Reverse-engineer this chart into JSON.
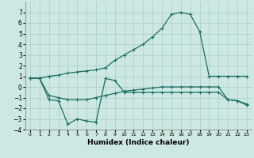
{
  "xlabel": "Humidex (Indice chaleur)",
  "background_color": "#cde8e2",
  "grid_color": "#aed0ca",
  "line_color": "#1a6e64",
  "xlim": [
    -0.5,
    23.5
  ],
  "ylim": [
    -4,
    8
  ],
  "yticks": [
    -4,
    -3,
    -2,
    -1,
    0,
    1,
    2,
    3,
    4,
    5,
    6,
    7
  ],
  "xticks": [
    0,
    1,
    2,
    3,
    4,
    5,
    6,
    7,
    8,
    9,
    10,
    11,
    12,
    13,
    14,
    15,
    16,
    17,
    18,
    19,
    20,
    21,
    22,
    23
  ],
  "series": [
    {
      "x": [
        0,
        1,
        2,
        3,
        4,
        5,
        6,
        7,
        8,
        9,
        10,
        11,
        12,
        13,
        14,
        15,
        16,
        17,
        18,
        19,
        20,
        21,
        22,
        23
      ],
      "y": [
        0.8,
        0.8,
        1.0,
        1.1,
        1.3,
        1.4,
        1.5,
        1.6,
        1.8,
        2.5,
        3.0,
        3.5,
        4.0,
        4.7,
        5.5,
        6.8,
        7.0,
        6.8,
        5.2,
        1.0,
        1.0,
        1.0,
        1.0,
        1.0
      ]
    },
    {
      "x": [
        0,
        1,
        2,
        3,
        4,
        5,
        6,
        7,
        8,
        9,
        10,
        11,
        12,
        13,
        14,
        15,
        16,
        17,
        18,
        19,
        20,
        21,
        22,
        23
      ],
      "y": [
        0.8,
        0.8,
        -0.8,
        -1.0,
        -1.2,
        -1.2,
        -1.2,
        -1.0,
        -0.8,
        -0.6,
        -0.4,
        -0.3,
        -0.2,
        -0.1,
        0.0,
        0.0,
        0.0,
        0.0,
        0.0,
        0.0,
        0.0,
        -1.2,
        -1.3,
        -1.6
      ]
    },
    {
      "x": [
        0,
        1,
        2,
        3,
        4,
        5,
        6,
        7,
        8,
        9,
        10,
        11,
        12,
        13,
        14,
        15,
        16,
        17,
        18,
        19,
        20,
        21,
        22,
        23
      ],
      "y": [
        0.8,
        0.8,
        -1.2,
        -1.3,
        -3.5,
        -3.0,
        -3.2,
        -3.3,
        0.8,
        0.6,
        -0.5,
        -0.5,
        -0.5,
        -0.5,
        -0.5,
        -0.5,
        -0.5,
        -0.5,
        -0.5,
        -0.5,
        -0.5,
        -1.2,
        -1.3,
        -1.7
      ]
    }
  ]
}
